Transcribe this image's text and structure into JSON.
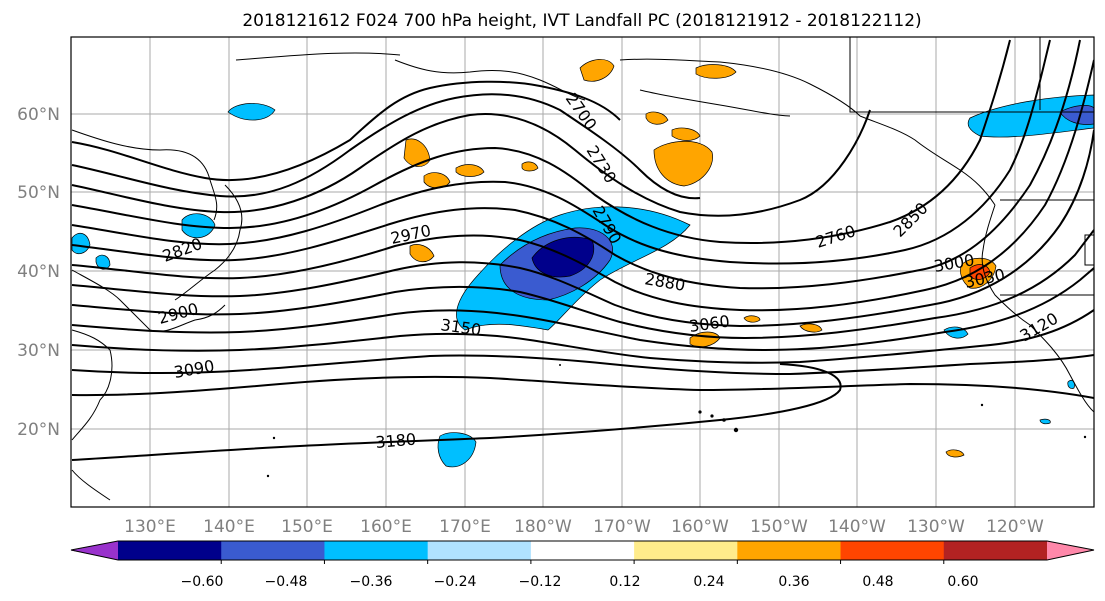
{
  "title": "2018121612 F024 700 hPa height, IVT Landfall PC (2018121912 - 2018122112)",
  "map": {
    "latitude_labels": [
      "60°N",
      "50°N",
      "40°N",
      "30°N",
      "20°N"
    ],
    "longitude_labels": [
      "130°E",
      "140°E",
      "150°E",
      "160°E",
      "170°E",
      "180°W",
      "170°W",
      "160°W",
      "150°W",
      "140°W",
      "130°W",
      "120°W"
    ],
    "height_contour_labels": [
      "2700",
      "2730",
      "2790",
      "2820",
      "2760",
      "2850",
      "2970",
      "2880",
      "3000",
      "3030",
      "3060",
      "3150",
      "3120",
      "3090",
      "3180",
      "2900"
    ],
    "colors": {
      "negative_anomaly": "#00bfff",
      "strong_negative": "#3a5bd0",
      "positive_anomaly": "#ffa500",
      "strong_positive": "#ff4500",
      "grid": "#aaaaaa",
      "contour": "#000000"
    }
  },
  "colorbar": {
    "ticks": [
      "−0.60",
      "−0.48",
      "−0.36",
      "−0.24",
      "−0.12",
      "0.12",
      "0.24",
      "0.36",
      "0.48",
      "0.60"
    ],
    "bins": [
      "#9932cc",
      "#00008b",
      "#3a5bd0",
      "#00bfff",
      "#b0e2ff",
      "#ffffff",
      "#ffec8b",
      "#ffa500",
      "#ff4500",
      "#b22222",
      "#ff88aa"
    ]
  }
}
